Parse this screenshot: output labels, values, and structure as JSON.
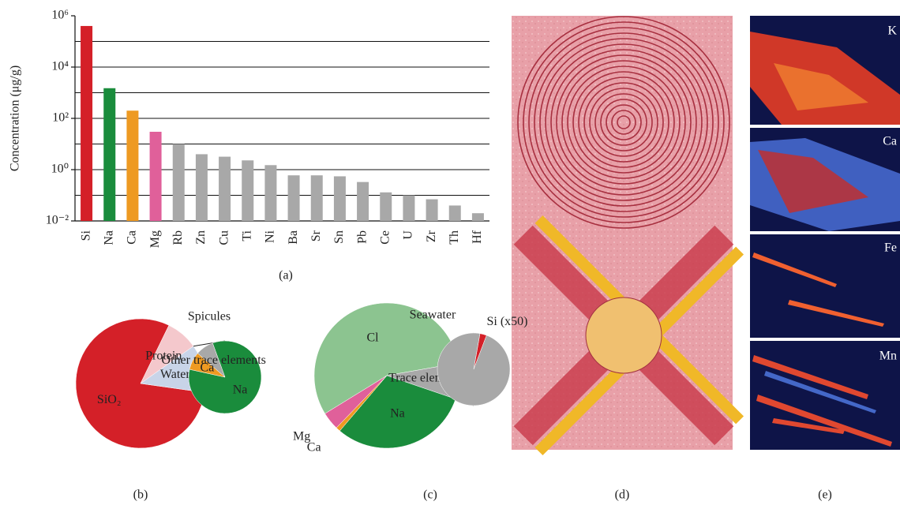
{
  "chart_data": [
    {
      "type": "bar",
      "log_scale": true,
      "grid": true,
      "y_label": "Concentration (μg/g)",
      "caption": "(a)",
      "categories": [
        "Si",
        "Na",
        "Ca",
        "Mg",
        "Rb",
        "Zn",
        "Cu",
        "Ti",
        "Ni",
        "Ba",
        "Sr",
        "Sn",
        "Pb",
        "Ce",
        "U",
        "Zr",
        "Th",
        "Hf"
      ],
      "values": [
        400000,
        1500,
        200,
        30,
        10,
        4,
        3.2,
        2.3,
        1.5,
        0.6,
        0.6,
        0.55,
        0.33,
        0.13,
        0.1,
        0.07,
        0.04,
        0.02
      ],
      "colors": [
        "#d42028",
        "#1a8c3c",
        "#ee9a22",
        "#e0609a",
        "#a8a8a8",
        "#a8a8a8",
        "#a8a8a8",
        "#a8a8a8",
        "#a8a8a8",
        "#a8a8a8",
        "#a8a8a8",
        "#a8a8a8",
        "#a8a8a8",
        "#a8a8a8",
        "#a8a8a8",
        "#a8a8a8",
        "#a8a8a8",
        "#a8a8a8"
      ],
      "ylim": [
        0.01,
        1000000
      ],
      "yticks": [
        {
          "value": 0.01,
          "label": "10⁻²"
        },
        {
          "value": 1,
          "label": "10⁰"
        },
        {
          "value": 100,
          "label": "10²"
        },
        {
          "value": 10000,
          "label": "10⁴"
        },
        {
          "value": 1000000,
          "label": "10⁶"
        }
      ],
      "ygrid": [
        0.1,
        1,
        10,
        100,
        1000,
        10000,
        100000
      ]
    },
    {
      "type": "pie",
      "title": "Spicules",
      "caption": "(b)",
      "categories": [
        "SiO₂",
        "Protein",
        "Water"
      ],
      "values": [
        80,
        8,
        12
      ],
      "colors": [
        "#d42028",
        "#f4c8cc",
        "#c8d4e8"
      ],
      "sub": {
        "categories": [
          "Na",
          "Ca",
          "Other trace elements"
        ],
        "values": [
          84,
          8,
          8
        ],
        "colors": [
          "#1a8c3c",
          "#ee9a22",
          "#a8a8a8"
        ]
      }
    },
    {
      "type": "pie",
      "title": "Seawater",
      "caption": "(c)",
      "categories": [
        "Cl",
        "Trace elements",
        "Na",
        "Ca",
        "Mg"
      ],
      "values": [
        56,
        8,
        31,
        1,
        4
      ],
      "colors": [
        "#8cc490",
        "#a8a8a8",
        "#1a8c3c",
        "#ee9a22",
        "#e0609a"
      ],
      "sub": {
        "categories": [
          "Si (x50)",
          null
        ],
        "values": [
          3,
          97
        ],
        "colors": [
          "#d42028",
          "#a8a8a8"
        ]
      }
    }
  ],
  "panels": {
    "d": {
      "caption": "(d)"
    },
    "e": {
      "caption": "(e)",
      "maps": [
        "K",
        "Ca",
        "Fe",
        "Mn"
      ]
    }
  }
}
